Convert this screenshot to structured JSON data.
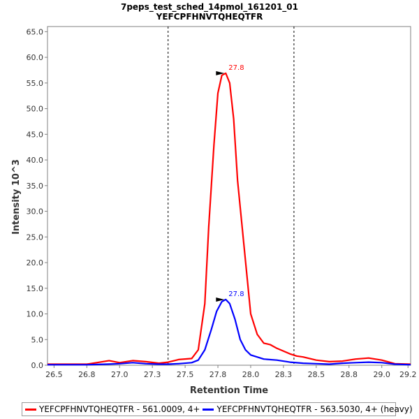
{
  "chart_data": {
    "type": "line",
    "title": "7peps_test_sched_14pmol_161201_01",
    "subtitle": "YEFCPFHNVTQHEQTFR",
    "xlabel": "Retention Time",
    "ylabel": "Intensity 10^3",
    "xlim": [
      26.45,
      29.22
    ],
    "ylim": [
      0,
      66
    ],
    "xticks": [
      "26.5",
      "26.8",
      "27.0",
      "27.3",
      "27.5",
      "27.8",
      "28.0",
      "28.3",
      "28.5",
      "28.8",
      "29.0",
      "29.2"
    ],
    "yticks": [
      "0.0",
      "5.0",
      "10.0",
      "15.0",
      "20.0",
      "25.0",
      "30.0",
      "35.0",
      "40.0",
      "45.0",
      "50.0",
      "55.0",
      "60.0",
      "65.0"
    ],
    "boundaries": [
      27.37,
      28.33
    ],
    "legend_placement": "bottom",
    "series": [
      {
        "name": "YEFCPFHNVTQHEQTFR - 561.0009, 4+",
        "color": "#ff0000",
        "peak_label": "27.8",
        "peak": {
          "x": 27.81,
          "y": 56.9
        },
        "x": [
          26.45,
          26.6,
          26.75,
          26.85,
          26.92,
          27.0,
          27.1,
          27.2,
          27.3,
          27.37,
          27.45,
          27.55,
          27.6,
          27.65,
          27.68,
          27.72,
          27.75,
          27.78,
          27.81,
          27.84,
          27.87,
          27.9,
          27.95,
          28.0,
          28.05,
          28.1,
          28.15,
          28.2,
          28.3,
          28.35,
          28.4,
          28.5,
          28.6,
          28.7,
          28.8,
          28.9,
          29.0,
          29.1,
          29.22
        ],
        "values": [
          0.2,
          0.2,
          0.2,
          0.6,
          0.9,
          0.5,
          0.9,
          0.7,
          0.4,
          0.6,
          1.1,
          1.3,
          3.0,
          12.0,
          27.0,
          43.0,
          53.0,
          56.5,
          56.9,
          55.0,
          48.0,
          36.0,
          23.0,
          10.0,
          6.0,
          4.3,
          4.0,
          3.3,
          2.2,
          1.8,
          1.6,
          1.0,
          0.7,
          0.8,
          1.2,
          1.4,
          1.0,
          0.3,
          0.2
        ]
      },
      {
        "name": "YEFCPFHNVTQHEQTFR - 563.5030, 4+ (heavy)",
        "color": "#0000ff",
        "peak_label": "27.8",
        "peak": {
          "x": 27.81,
          "y": 12.8
        },
        "x": [
          26.45,
          26.6,
          26.75,
          26.9,
          27.0,
          27.1,
          27.2,
          27.3,
          27.37,
          27.45,
          27.55,
          27.6,
          27.65,
          27.7,
          27.74,
          27.78,
          27.81,
          27.84,
          27.88,
          27.92,
          27.96,
          28.0,
          28.1,
          28.2,
          28.3,
          28.4,
          28.5,
          28.6,
          28.7,
          28.8,
          28.9,
          29.0,
          29.1,
          29.22
        ],
        "values": [
          0.1,
          0.1,
          0.1,
          0.2,
          0.3,
          0.5,
          0.3,
          0.2,
          0.2,
          0.3,
          0.5,
          1.0,
          3.0,
          7.0,
          10.5,
          12.4,
          12.8,
          12.0,
          9.0,
          5.0,
          3.0,
          2.0,
          1.2,
          1.0,
          0.6,
          0.4,
          0.3,
          0.2,
          0.4,
          0.5,
          0.6,
          0.5,
          0.2,
          0.1
        ]
      }
    ]
  }
}
